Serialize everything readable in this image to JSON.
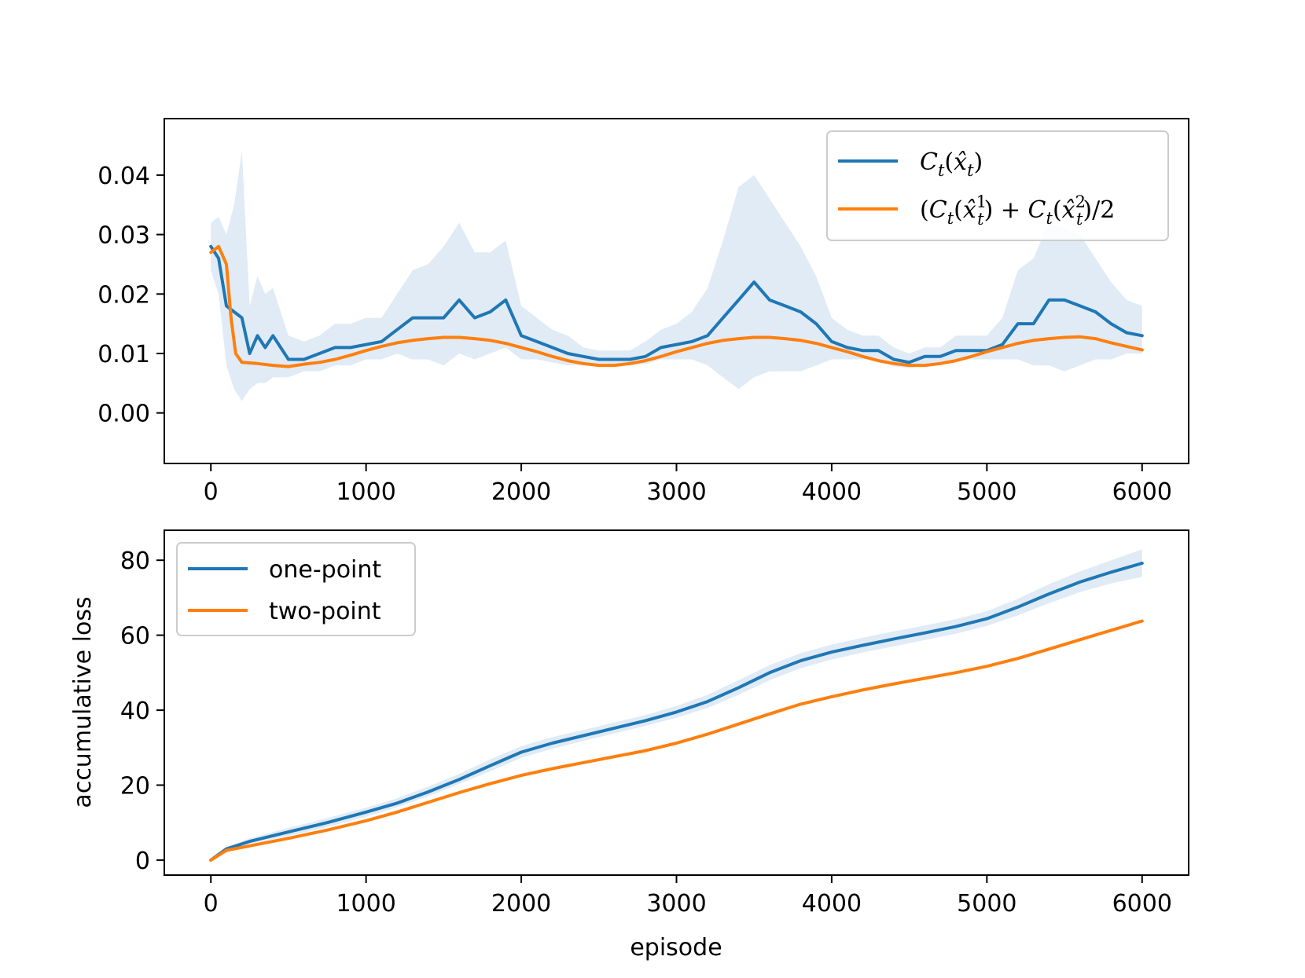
{
  "chart_data": [
    {
      "type": "line",
      "title": "",
      "xlabel": "",
      "ylabel": "",
      "xlim": [
        -300,
        6300
      ],
      "ylim": [
        -0.0085,
        0.0495
      ],
      "xticks": [
        0,
        1000,
        2000,
        3000,
        4000,
        5000,
        6000
      ],
      "xtick_labels": [
        "0",
        "1000",
        "2000",
        "3000",
        "4000",
        "5000",
        "6000"
      ],
      "yticks": [
        0.0,
        0.01,
        0.02,
        0.03,
        0.04
      ],
      "ytick_labels": [
        "0.00",
        "0.01",
        "0.02",
        "0.03",
        "0.04"
      ],
      "grid": false,
      "legend_position": "top-right",
      "series": [
        {
          "name": "C_t(x̂_t)",
          "color": "#1f77b4",
          "band_color": "#c6dbef",
          "x": [
            0,
            50,
            100,
            150,
            200,
            250,
            300,
            350,
            400,
            500,
            600,
            700,
            800,
            900,
            1000,
            1100,
            1200,
            1300,
            1400,
            1500,
            1600,
            1700,
            1800,
            1900,
            2000,
            2100,
            2200,
            2300,
            2400,
            2500,
            2600,
            2700,
            2800,
            2900,
            3000,
            3100,
            3200,
            3300,
            3400,
            3500,
            3600,
            3700,
            3800,
            3900,
            4000,
            4100,
            4200,
            4300,
            4400,
            4500,
            4600,
            4700,
            4800,
            4900,
            5000,
            5100,
            5200,
            5300,
            5400,
            5500,
            5600,
            5700,
            5800,
            5900,
            6000
          ],
          "y": [
            0.028,
            0.026,
            0.018,
            0.017,
            0.016,
            0.01,
            0.013,
            0.011,
            0.013,
            0.009,
            0.009,
            0.01,
            0.011,
            0.011,
            0.0115,
            0.012,
            0.014,
            0.016,
            0.016,
            0.016,
            0.019,
            0.016,
            0.017,
            0.019,
            0.013,
            0.012,
            0.011,
            0.01,
            0.0095,
            0.009,
            0.009,
            0.009,
            0.0095,
            0.011,
            0.0115,
            0.012,
            0.013,
            0.016,
            0.019,
            0.022,
            0.019,
            0.018,
            0.017,
            0.015,
            0.012,
            0.011,
            0.0105,
            0.0105,
            0.009,
            0.0085,
            0.0095,
            0.0095,
            0.0105,
            0.0105,
            0.0105,
            0.0115,
            0.015,
            0.015,
            0.019,
            0.019,
            0.018,
            0.017,
            0.015,
            0.0135,
            0.013
          ],
          "band_low": [
            0.024,
            0.02,
            0.008,
            0.004,
            0.002,
            0.004,
            0.005,
            0.005,
            0.006,
            0.006,
            0.007,
            0.007,
            0.008,
            0.008,
            0.009,
            0.009,
            0.01,
            0.009,
            0.009,
            0.008,
            0.01,
            0.009,
            0.01,
            0.011,
            0.009,
            0.009,
            0.0085,
            0.008,
            0.008,
            0.0078,
            0.008,
            0.008,
            0.0082,
            0.009,
            0.009,
            0.009,
            0.008,
            0.006,
            0.004,
            0.006,
            0.007,
            0.007,
            0.007,
            0.008,
            0.009,
            0.009,
            0.009,
            0.009,
            0.0078,
            0.0075,
            0.008,
            0.008,
            0.009,
            0.009,
            0.009,
            0.009,
            0.009,
            0.008,
            0.008,
            0.007,
            0.008,
            0.009,
            0.009,
            0.01,
            0.01
          ],
          "band_high": [
            0.032,
            0.033,
            0.03,
            0.035,
            0.044,
            0.018,
            0.023,
            0.02,
            0.021,
            0.013,
            0.012,
            0.013,
            0.015,
            0.015,
            0.016,
            0.016,
            0.02,
            0.024,
            0.025,
            0.028,
            0.032,
            0.027,
            0.027,
            0.029,
            0.018,
            0.016,
            0.014,
            0.013,
            0.011,
            0.0105,
            0.0105,
            0.0105,
            0.012,
            0.014,
            0.015,
            0.017,
            0.021,
            0.029,
            0.038,
            0.04,
            0.036,
            0.032,
            0.028,
            0.023,
            0.016,
            0.014,
            0.013,
            0.013,
            0.011,
            0.01,
            0.011,
            0.011,
            0.013,
            0.013,
            0.013,
            0.016,
            0.024,
            0.026,
            0.032,
            0.031,
            0.03,
            0.026,
            0.022,
            0.019,
            0.018
          ]
        },
        {
          "name": "(C_t(x̂_t^1) + C_t(x̂_t^2)/2",
          "color": "#ff7f0e",
          "x": [
            0,
            50,
            100,
            130,
            160,
            200,
            300,
            400,
            500,
            600,
            700,
            800,
            900,
            1000,
            1100,
            1200,
            1300,
            1400,
            1500,
            1600,
            1700,
            1800,
            1900,
            2000,
            2100,
            2200,
            2300,
            2400,
            2500,
            2600,
            2700,
            2800,
            2900,
            3000,
            3100,
            3200,
            3300,
            3400,
            3500,
            3600,
            3700,
            3800,
            3900,
            4000,
            4100,
            4200,
            4300,
            4400,
            4500,
            4600,
            4700,
            4800,
            4900,
            5000,
            5100,
            5200,
            5300,
            5400,
            5500,
            5600,
            5700,
            5800,
            5900,
            6000
          ],
          "y": [
            0.027,
            0.028,
            0.025,
            0.016,
            0.01,
            0.0085,
            0.0083,
            0.008,
            0.0078,
            0.0082,
            0.0085,
            0.009,
            0.0097,
            0.0105,
            0.0112,
            0.0118,
            0.0122,
            0.0125,
            0.0127,
            0.0127,
            0.0125,
            0.0122,
            0.0117,
            0.011,
            0.0103,
            0.0095,
            0.0088,
            0.0083,
            0.008,
            0.008,
            0.0083,
            0.0088,
            0.0095,
            0.0103,
            0.011,
            0.0117,
            0.0122,
            0.0125,
            0.0127,
            0.0127,
            0.0125,
            0.0122,
            0.0117,
            0.011,
            0.0103,
            0.0095,
            0.0088,
            0.0083,
            0.008,
            0.008,
            0.0083,
            0.0088,
            0.0095,
            0.0103,
            0.011,
            0.0117,
            0.0122,
            0.0125,
            0.0127,
            0.0128,
            0.0125,
            0.0118,
            0.0112,
            0.0106
          ]
        }
      ]
    },
    {
      "type": "line",
      "title": "",
      "xlabel": "episode",
      "ylabel": "accumulative loss",
      "xlim": [
        -300,
        6300
      ],
      "ylim": [
        -4,
        88
      ],
      "xticks": [
        0,
        1000,
        2000,
        3000,
        4000,
        5000,
        6000
      ],
      "xtick_labels": [
        "0",
        "1000",
        "2000",
        "3000",
        "4000",
        "5000",
        "6000"
      ],
      "yticks": [
        0,
        20,
        40,
        60,
        80
      ],
      "ytick_labels": [
        "0",
        "20",
        "40",
        "60",
        "80"
      ],
      "grid": false,
      "legend_position": "top-left",
      "series": [
        {
          "name": "one-point",
          "color": "#1f77b4",
          "band_color": "#c6dbef",
          "x": [
            0,
            100,
            250,
            500,
            750,
            1000,
            1200,
            1400,
            1600,
            1800,
            2000,
            2200,
            2400,
            2600,
            2800,
            3000,
            3200,
            3400,
            3600,
            3800,
            4000,
            4200,
            4400,
            4600,
            4800,
            5000,
            5200,
            5400,
            5600,
            5800,
            6000
          ],
          "y": [
            0,
            3,
            5,
            7.5,
            10,
            12.8,
            15.2,
            18.2,
            21.5,
            25.2,
            28.8,
            31.2,
            33.2,
            35.2,
            37.2,
            39.5,
            42.3,
            46,
            50,
            53.2,
            55.5,
            57.3,
            59,
            60.6,
            62.3,
            64.4,
            67.5,
            71,
            74.2,
            76.8,
            79.2
          ],
          "band_low": [
            0,
            2.5,
            4.3,
            6.4,
            8.8,
            11.6,
            14.1,
            17,
            20.3,
            23.7,
            27.3,
            29.7,
            31.8,
            33.8,
            35.8,
            38,
            40.6,
            44.1,
            48,
            51.2,
            53.5,
            55.4,
            57,
            58.7,
            60.4,
            62.5,
            65.3,
            68.5,
            71.5,
            73.8,
            75.6
          ],
          "band_high": [
            0,
            3.5,
            5.8,
            8.6,
            11.2,
            14,
            16.5,
            19.6,
            23,
            26.9,
            30.4,
            32.8,
            34.7,
            36.7,
            38.7,
            41.1,
            44.1,
            48,
            52,
            55.2,
            57.5,
            59.3,
            61,
            62.6,
            64.3,
            66.4,
            69.7,
            73.6,
            77,
            80,
            82.9
          ]
        },
        {
          "name": "two-point",
          "color": "#ff7f0e",
          "x": [
            0,
            100,
            250,
            500,
            750,
            1000,
            1200,
            1400,
            1600,
            1800,
            2000,
            2200,
            2400,
            2600,
            2800,
            3000,
            3200,
            3400,
            3600,
            3800,
            4000,
            4200,
            4400,
            4600,
            4800,
            5000,
            5200,
            5400,
            5600,
            5800,
            6000
          ],
          "y": [
            0,
            2.6,
            3.8,
            5.8,
            8,
            10.5,
            12.8,
            15.4,
            18,
            20.4,
            22.6,
            24.4,
            26,
            27.6,
            29.2,
            31.2,
            33.6,
            36.3,
            39,
            41.6,
            43.6,
            45.4,
            47,
            48.5,
            50,
            51.7,
            53.8,
            56.3,
            58.8,
            61.3,
            63.8
          ]
        }
      ]
    }
  ],
  "legend_top": {
    "item1": {
      "C": "C",
      "sub": "t",
      "paren_open": "(",
      "x": "x̂",
      "x_sub": "t",
      "paren_close": ")"
    },
    "item2": {
      "lead": "(",
      "C": "C",
      "sub": "t",
      "paren_open": "(",
      "x": "x̂",
      "sup1": "1",
      "x_sub": "t",
      "mid": ") + ",
      "C2": "C",
      "sub2": "t",
      "paren_open2": "(",
      "x2": "x̂",
      "sup2": "2",
      "x_sub2": "t",
      "tail": ")/2"
    }
  }
}
